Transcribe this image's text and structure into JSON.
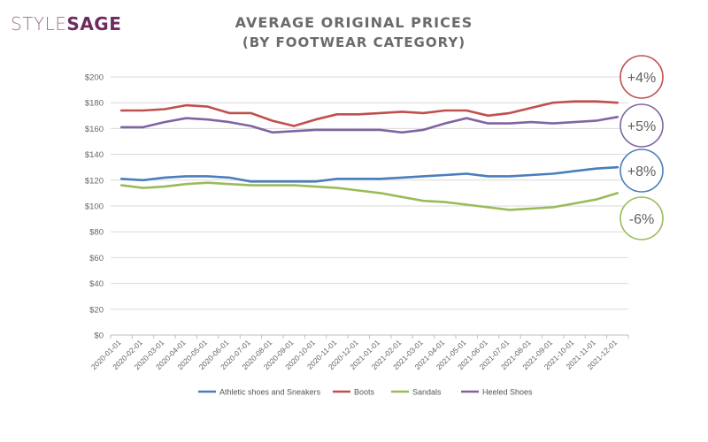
{
  "brand": {
    "part1": "STYLE",
    "part2": "SAGE"
  },
  "header": {
    "title": "AVERAGE ORIGINAL PRICES",
    "subtitle": "(BY FOOTWEAR CATEGORY)"
  },
  "chart_data": {
    "type": "line",
    "title": "AVERAGE ORIGINAL PRICES",
    "subtitle": "(BY FOOTWEAR CATEGORY)",
    "xlabel": "",
    "ylabel": "",
    "ylim": [
      0,
      200
    ],
    "yticks": [
      0,
      20,
      40,
      60,
      80,
      100,
      120,
      140,
      160,
      180,
      200
    ],
    "ytick_labels": [
      "$0",
      "$20",
      "$40",
      "$60",
      "$80",
      "$100",
      "$120",
      "$140",
      "$160",
      "$180",
      "$200"
    ],
    "grid": true,
    "legend_position": "bottom",
    "x": [
      "2020-01-01",
      "2020-02-01",
      "2020-03-01",
      "2020-04-01",
      "2020-05-01",
      "2020-06-01",
      "2020-07-01",
      "2020-08-01",
      "2020-09-01",
      "2020-10-01",
      "2020-11-01",
      "2020-12-01",
      "2021-01-01",
      "2021-02-01",
      "2021-03-01",
      "2021-04-01",
      "2021-05-01",
      "2021-06-01",
      "2021-07-01",
      "2021-08-01",
      "2021-09-01",
      "2021-10-01",
      "2021-11-01",
      "2021-12-01"
    ],
    "series": [
      {
        "name": "Athletic shoes and Sneakers",
        "color": "#4a7ebb",
        "values": [
          121,
          120,
          122,
          123,
          123,
          122,
          119,
          119,
          119,
          119,
          121,
          121,
          121,
          122,
          123,
          124,
          125,
          123,
          123,
          124,
          125,
          127,
          129,
          130
        ]
      },
      {
        "name": "Boots",
        "color": "#c0504d",
        "values": [
          174,
          174,
          175,
          178,
          177,
          172,
          172,
          166,
          162,
          167,
          171,
          171,
          172,
          173,
          172,
          174,
          174,
          170,
          172,
          176,
          180,
          181,
          181,
          180
        ]
      },
      {
        "name": "Sandals",
        "color": "#9bbb59",
        "values": [
          116,
          114,
          115,
          117,
          118,
          117,
          116,
          116,
          116,
          115,
          114,
          112,
          110,
          107,
          104,
          103,
          101,
          99,
          97,
          98,
          99,
          102,
          105,
          110
        ]
      },
      {
        "name": "Heeled Shoes",
        "color": "#8064a2",
        "values": [
          161,
          161,
          165,
          168,
          167,
          165,
          162,
          157,
          158,
          159,
          159,
          159,
          159,
          157,
          159,
          164,
          168,
          164,
          164,
          165,
          164,
          165,
          166,
          169
        ]
      }
    ],
    "annotations": [
      {
        "series": "Boots",
        "text": "+4%"
      },
      {
        "series": "Heeled Shoes",
        "text": "+5%"
      },
      {
        "series": "Athletic shoes and Sneakers",
        "text": "+8%"
      },
      {
        "series": "Sandals",
        "text": "-6%"
      }
    ]
  }
}
